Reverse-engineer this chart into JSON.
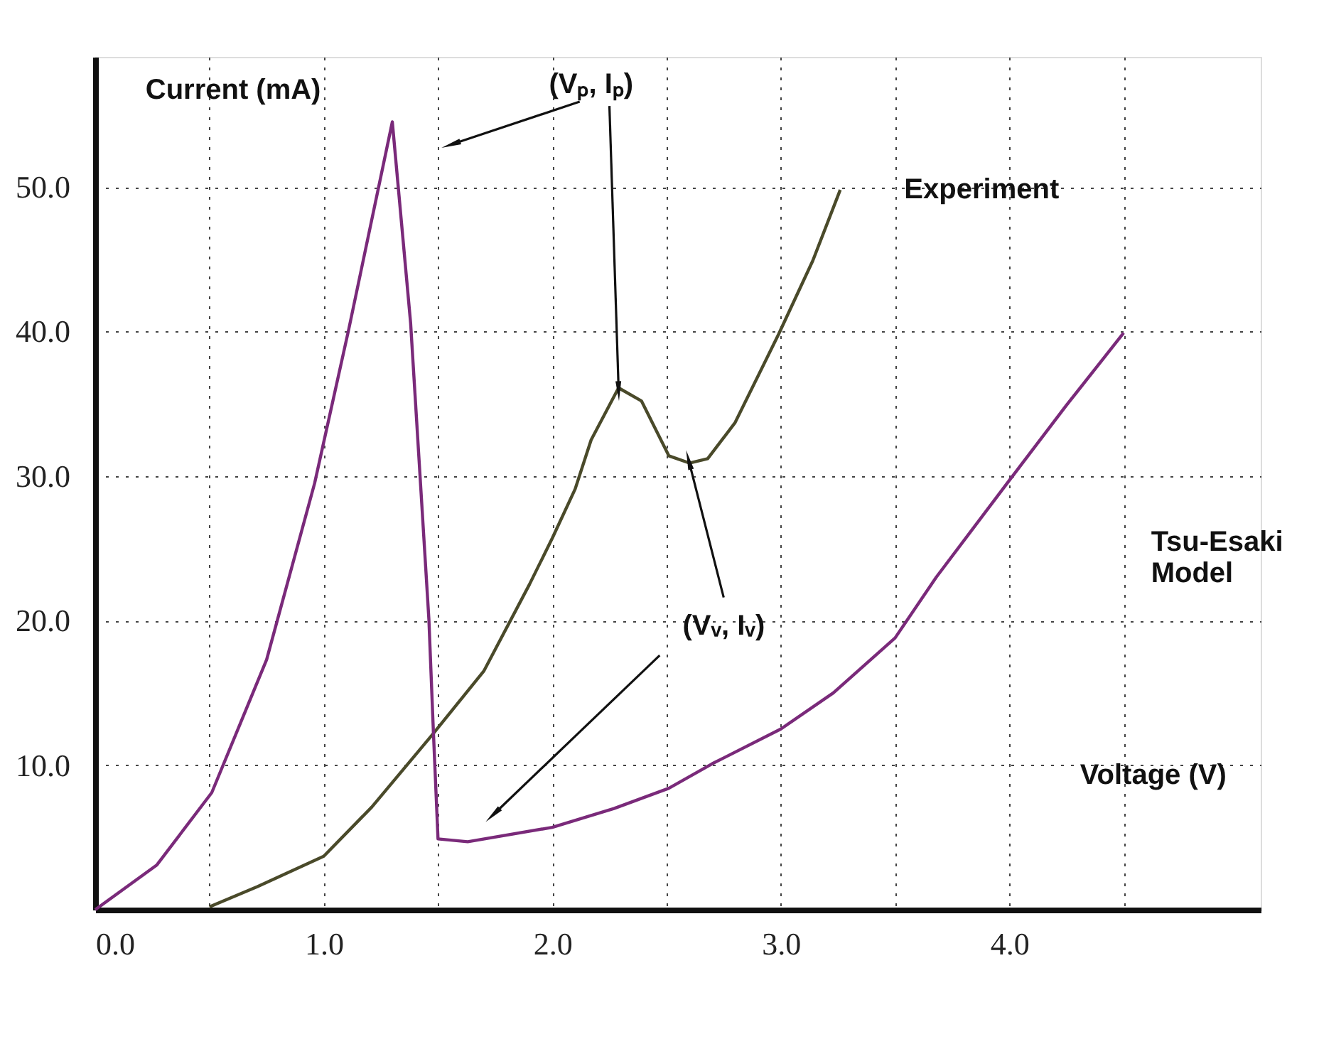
{
  "chart_data": {
    "type": "line",
    "xlabel": "Voltage (V)",
    "ylabel": "Current (mA)",
    "xlim": [
      0,
      5.1
    ],
    "ylim": [
      0,
      59
    ],
    "xticks": [
      {
        "value": 0,
        "label": "0.0"
      },
      {
        "value": 0.5,
        "label": null
      },
      {
        "value": 1,
        "label": "1.0"
      },
      {
        "value": 1.5,
        "label": null
      },
      {
        "value": 2,
        "label": "2.0"
      },
      {
        "value": 2.5,
        "label": null
      },
      {
        "value": 3,
        "label": "3.0"
      },
      {
        "value": 3.5,
        "label": null
      },
      {
        "value": 4,
        "label": "4.0"
      },
      {
        "value": 4.5,
        "label": null
      }
    ],
    "yticks": [
      {
        "value": 10,
        "label": "10.0"
      },
      {
        "value": 20,
        "label": "20.0"
      },
      {
        "value": 30,
        "label": "30.0"
      },
      {
        "value": 40,
        "label": "40.0"
      },
      {
        "value": 50,
        "label": "50.0"
      }
    ],
    "grid": true,
    "line_style": "solid",
    "marker": "none",
    "series": [
      {
        "name": "Experiment",
        "color": "#4a4a2a",
        "x": [
          0.5,
          0.71,
          1.0,
          1.21,
          1.48,
          1.7,
          1.9,
          2.0,
          2.1,
          2.17,
          2.29,
          2.39,
          2.51,
          2.6,
          2.68,
          2.8,
          2.99,
          3.14,
          3.26
        ],
        "values": [
          0.2,
          1.6,
          3.7,
          7.1,
          12.2,
          16.5,
          22.5,
          25.7,
          29.1,
          32.5,
          36.1,
          35.2,
          31.4,
          30.9,
          31.2,
          33.7,
          39.8,
          44.9,
          49.8
        ]
      },
      {
        "name": "Tsu-Esaki\nModel",
        "color": "#7a2a7a",
        "x": [
          0,
          0.27,
          0.51,
          0.75,
          0.96,
          1.11,
          1.3,
          1.38,
          1.46,
          1.48,
          1.5,
          1.63,
          2.0,
          2.27,
          2.51,
          2.7,
          3.0,
          3.23,
          3.5,
          3.68,
          4.0,
          4.25,
          4.5
        ],
        "values": [
          0,
          3.1,
          8.1,
          17.3,
          29.5,
          40.2,
          54.5,
          40.6,
          20.1,
          12.2,
          4.9,
          4.7,
          5.7,
          7.0,
          8.4,
          10.1,
          12.5,
          15.0,
          18.8,
          23.0,
          29.7,
          34.9,
          39.9
        ]
      }
    ],
    "annotations": [
      {
        "text": "(Vₚ, Iₚ)",
        "x": 2.29,
        "y": 36.1
      },
      {
        "text": "(Vᵥ, Iᵥ)",
        "x": 2.6,
        "y": 30.9
      }
    ]
  }
}
